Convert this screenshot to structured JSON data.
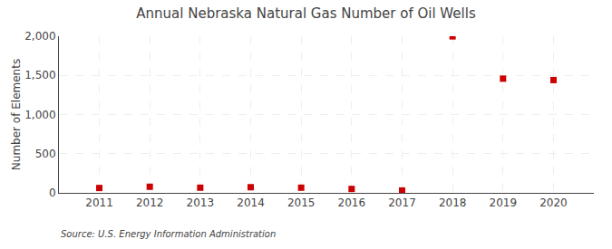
{
  "chart_data": {
    "type": "scatter",
    "title": "Annual Nebraska Natural Gas Number of Oil Wells",
    "ylabel": "Number of Elements",
    "source": "Source: U.S. Energy Information Administration",
    "x": [
      2011,
      2012,
      2013,
      2014,
      2015,
      2016,
      2017,
      2018,
      2019,
      2020
    ],
    "values": [
      62,
      78,
      66,
      72,
      66,
      50,
      30,
      1998,
      1458,
      1440
    ],
    "color": "#cc0000",
    "marker": "square",
    "xlim": [
      2010.2,
      2020.8
    ],
    "xticks": [
      2011,
      2012,
      2013,
      2014,
      2015,
      2016,
      2017,
      2018,
      2019,
      2020
    ],
    "ylim": [
      0,
      2000
    ],
    "yticks": [
      0,
      500,
      {
        "value": 1000,
        "label": "1,000"
      },
      {
        "value": 1500,
        "label": "1,500"
      },
      {
        "value": 2000,
        "label": "2,000"
      }
    ],
    "grid": true
  }
}
